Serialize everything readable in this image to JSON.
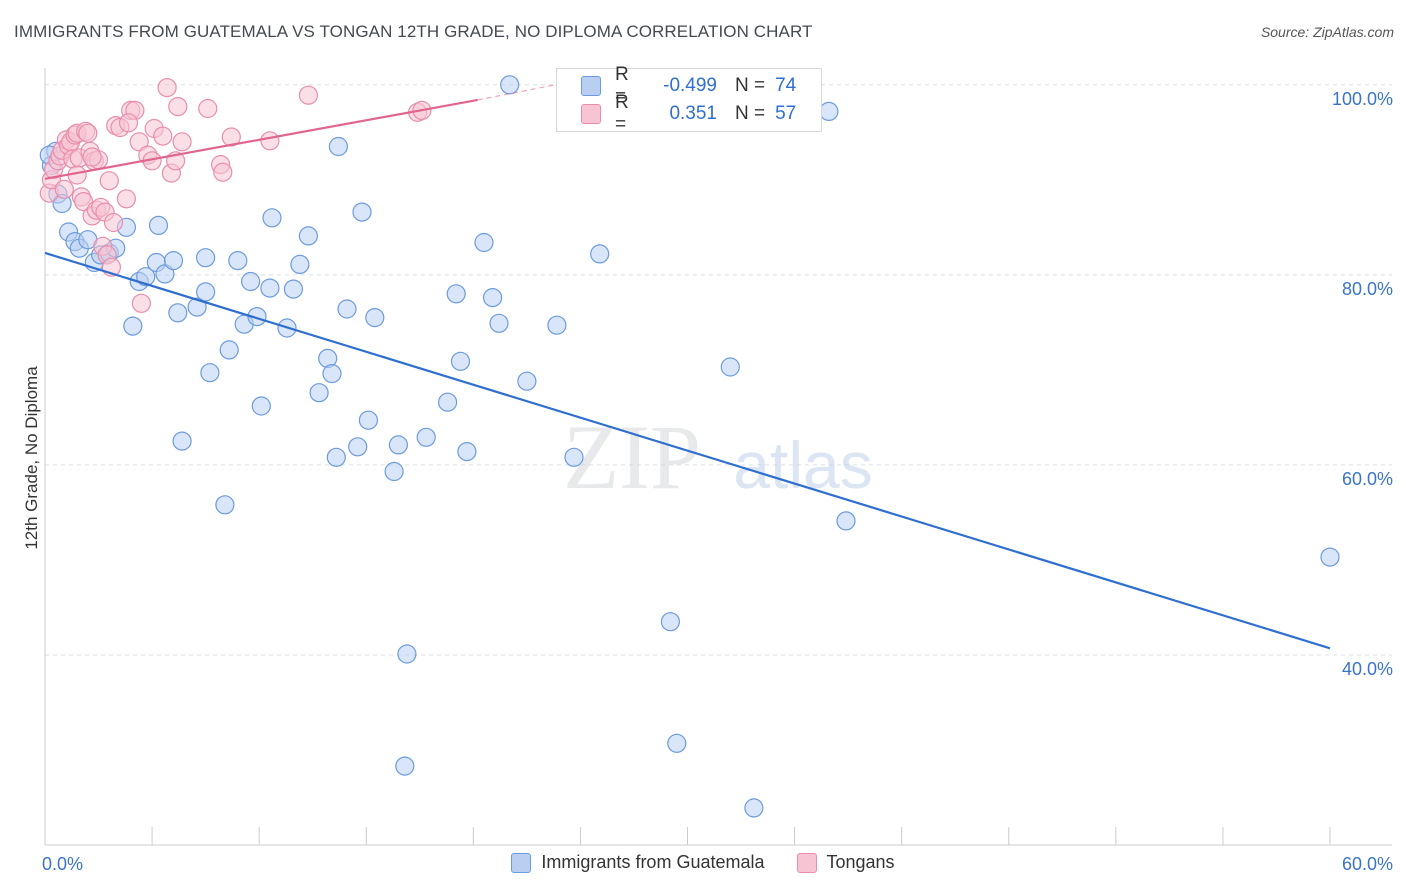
{
  "title": "IMMIGRANTS FROM GUATEMALA VS TONGAN 12TH GRADE, NO DIPLOMA CORRELATION CHART",
  "source": "Source: ZipAtlas.com",
  "watermark": {
    "zip": "ZIP",
    "atlas": "atlas"
  },
  "legend_stats": {
    "guatemala": {
      "r_label": "R =",
      "r_value": "-0.499",
      "n_label": "N =",
      "n_value": "74"
    },
    "tongan": {
      "r_label": "R =",
      "r_value": "0.351",
      "n_label": "N =",
      "n_value": "57"
    }
  },
  "colors": {
    "guatemala_fill": "#b9cff2",
    "guatemala_stroke": "#6d9bdd",
    "guatemala_line": "#2f6fcf",
    "tongan_fill": "#f7c4d4",
    "tongan_stroke": "#e88eac",
    "tongan_line": "#e0668f",
    "tick_text": "#3a74c8",
    "grid": "#dcdfe3"
  },
  "chart_data": {
    "type": "scatter",
    "title": "IMMIGRANTS FROM GUATEMALA VS TONGAN 12TH GRADE, NO DIPLOMA CORRELATION CHART",
    "xlabel": "",
    "ylabel": "12th Grade, No Diploma",
    "xlim": [
      0,
      60
    ],
    "ylim": [
      20,
      102
    ],
    "x_tick_labels": [
      "0.0%",
      "60.0%"
    ],
    "y_ticks": [
      40,
      60,
      80,
      100
    ],
    "y_tick_labels": [
      "40.0%",
      "60.0%",
      "80.0%",
      "100.0%"
    ],
    "grid": true,
    "legend_position": "bottom",
    "series": [
      {
        "name": "Immigrants from Guatemala",
        "r": -0.499,
        "n": 74,
        "trend": {
          "x": [
            0,
            60
          ],
          "y": [
            82.3,
            40.7
          ]
        },
        "points": [
          [
            0.3,
            91.5
          ],
          [
            0.5,
            93
          ],
          [
            0.6,
            88.5
          ],
          [
            0.8,
            87.5
          ],
          [
            1.1,
            84.5
          ],
          [
            1.4,
            83.5
          ],
          [
            1.6,
            82.8
          ],
          [
            2.0,
            83.7
          ],
          [
            2.3,
            81.3
          ],
          [
            2.6,
            82.1
          ],
          [
            3.0,
            82.3
          ],
          [
            3.3,
            82.8
          ],
          [
            3.8,
            85.0
          ],
          [
            4.1,
            74.6
          ],
          [
            4.4,
            79.3
          ],
          [
            4.7,
            79.8
          ],
          [
            5.2,
            81.3
          ],
          [
            5.3,
            85.2
          ],
          [
            5.6,
            80.1
          ],
          [
            6.0,
            81.5
          ],
          [
            6.2,
            76.0
          ],
          [
            7.1,
            76.6
          ],
          [
            7.5,
            81.8
          ],
          [
            7.5,
            78.2
          ],
          [
            7.7,
            69.7
          ],
          [
            8.4,
            55.8
          ],
          [
            8.6,
            72.1
          ],
          [
            9.0,
            81.5
          ],
          [
            9.3,
            74.8
          ],
          [
            9.6,
            79.3
          ],
          [
            9.9,
            75.6
          ],
          [
            10.1,
            66.2
          ],
          [
            10.5,
            78.6
          ],
          [
            10.6,
            86.0
          ],
          [
            11.3,
            74.4
          ],
          [
            11.6,
            78.5
          ],
          [
            11.9,
            81.1
          ],
          [
            12.3,
            84.1
          ],
          [
            6.4,
            62.5
          ],
          [
            12.8,
            67.6
          ],
          [
            13.2,
            71.2
          ],
          [
            13.4,
            69.6
          ],
          [
            13.6,
            60.8
          ],
          [
            13.7,
            93.5
          ],
          [
            14.1,
            76.4
          ],
          [
            14.6,
            61.9
          ],
          [
            14.8,
            86.6
          ],
          [
            15.1,
            64.7
          ],
          [
            15.4,
            75.5
          ],
          [
            16.3,
            59.3
          ],
          [
            16.5,
            62.1
          ],
          [
            16.9,
            40.1
          ],
          [
            16.8,
            28.3
          ],
          [
            17.8,
            62.9
          ],
          [
            18.8,
            66.6
          ],
          [
            19.2,
            78.0
          ],
          [
            19.4,
            70.9
          ],
          [
            19.7,
            61.4
          ],
          [
            20.5,
            83.4
          ],
          [
            20.9,
            77.6
          ],
          [
            21.2,
            74.9
          ],
          [
            21.7,
            100.0
          ],
          [
            22.5,
            68.8
          ],
          [
            23.9,
            74.7
          ],
          [
            24.7,
            60.8
          ],
          [
            25.9,
            82.2
          ],
          [
            29.2,
            43.5
          ],
          [
            29.5,
            30.7
          ],
          [
            32.0,
            70.3
          ],
          [
            33.1,
            23.9
          ],
          [
            36.6,
            97.2
          ],
          [
            37.4,
            54.1
          ],
          [
            60.0,
            50.3
          ],
          [
            0.2,
            92.6
          ]
        ]
      },
      {
        "name": "Tongans",
        "r": 0.351,
        "n": 57,
        "trend": {
          "x": [
            0,
            20.2
          ],
          "y": [
            90.1,
            98.4
          ]
        },
        "trend_dashed": {
          "x": [
            20.2,
            24.3
          ],
          "y": [
            98.4,
            100.2
          ]
        },
        "points": [
          [
            0.2,
            88.6
          ],
          [
            0.3,
            90.0
          ],
          [
            0.4,
            91.1
          ],
          [
            0.6,
            92.0
          ],
          [
            0.7,
            92.5
          ],
          [
            0.8,
            93.1
          ],
          [
            0.9,
            89.0
          ],
          [
            1.0,
            94.2
          ],
          [
            1.1,
            93.6
          ],
          [
            1.2,
            94.0
          ],
          [
            1.3,
            92.2
          ],
          [
            1.4,
            94.7
          ],
          [
            1.5,
            94.9
          ],
          [
            1.6,
            92.3
          ],
          [
            1.7,
            88.2
          ],
          [
            1.8,
            87.7
          ],
          [
            1.9,
            95.1
          ],
          [
            2.0,
            94.9
          ],
          [
            2.1,
            93.0
          ],
          [
            2.2,
            86.2
          ],
          [
            2.3,
            92.0
          ],
          [
            2.4,
            86.8
          ],
          [
            2.5,
            92.1
          ],
          [
            2.6,
            87.1
          ],
          [
            2.7,
            83.0
          ],
          [
            2.8,
            86.6
          ],
          [
            2.9,
            82.1
          ],
          [
            3.0,
            89.9
          ],
          [
            3.1,
            80.8
          ],
          [
            3.2,
            85.5
          ],
          [
            3.3,
            95.7
          ],
          [
            3.5,
            95.5
          ],
          [
            3.8,
            88.0
          ],
          [
            4.0,
            97.3
          ],
          [
            4.2,
            97.3
          ],
          [
            4.4,
            94.0
          ],
          [
            4.5,
            77.0
          ],
          [
            4.8,
            92.6
          ],
          [
            5.0,
            92.0
          ],
          [
            5.1,
            95.4
          ],
          [
            5.5,
            94.6
          ],
          [
            5.7,
            99.7
          ],
          [
            5.9,
            90.7
          ],
          [
            6.1,
            92.0
          ],
          [
            6.2,
            97.7
          ],
          [
            6.4,
            94.0
          ],
          [
            7.6,
            97.5
          ],
          [
            8.2,
            91.6
          ],
          [
            8.3,
            90.8
          ],
          [
            8.7,
            94.5
          ],
          [
            10.5,
            94.1
          ],
          [
            12.3,
            98.9
          ],
          [
            17.4,
            97.1
          ],
          [
            17.6,
            97.3
          ],
          [
            2.2,
            92.4
          ],
          [
            1.5,
            90.5
          ],
          [
            3.9,
            96.0
          ]
        ]
      }
    ]
  },
  "bottom_legend": [
    {
      "label": "Immigrants from Guatemala"
    },
    {
      "label": "Tongans"
    }
  ]
}
